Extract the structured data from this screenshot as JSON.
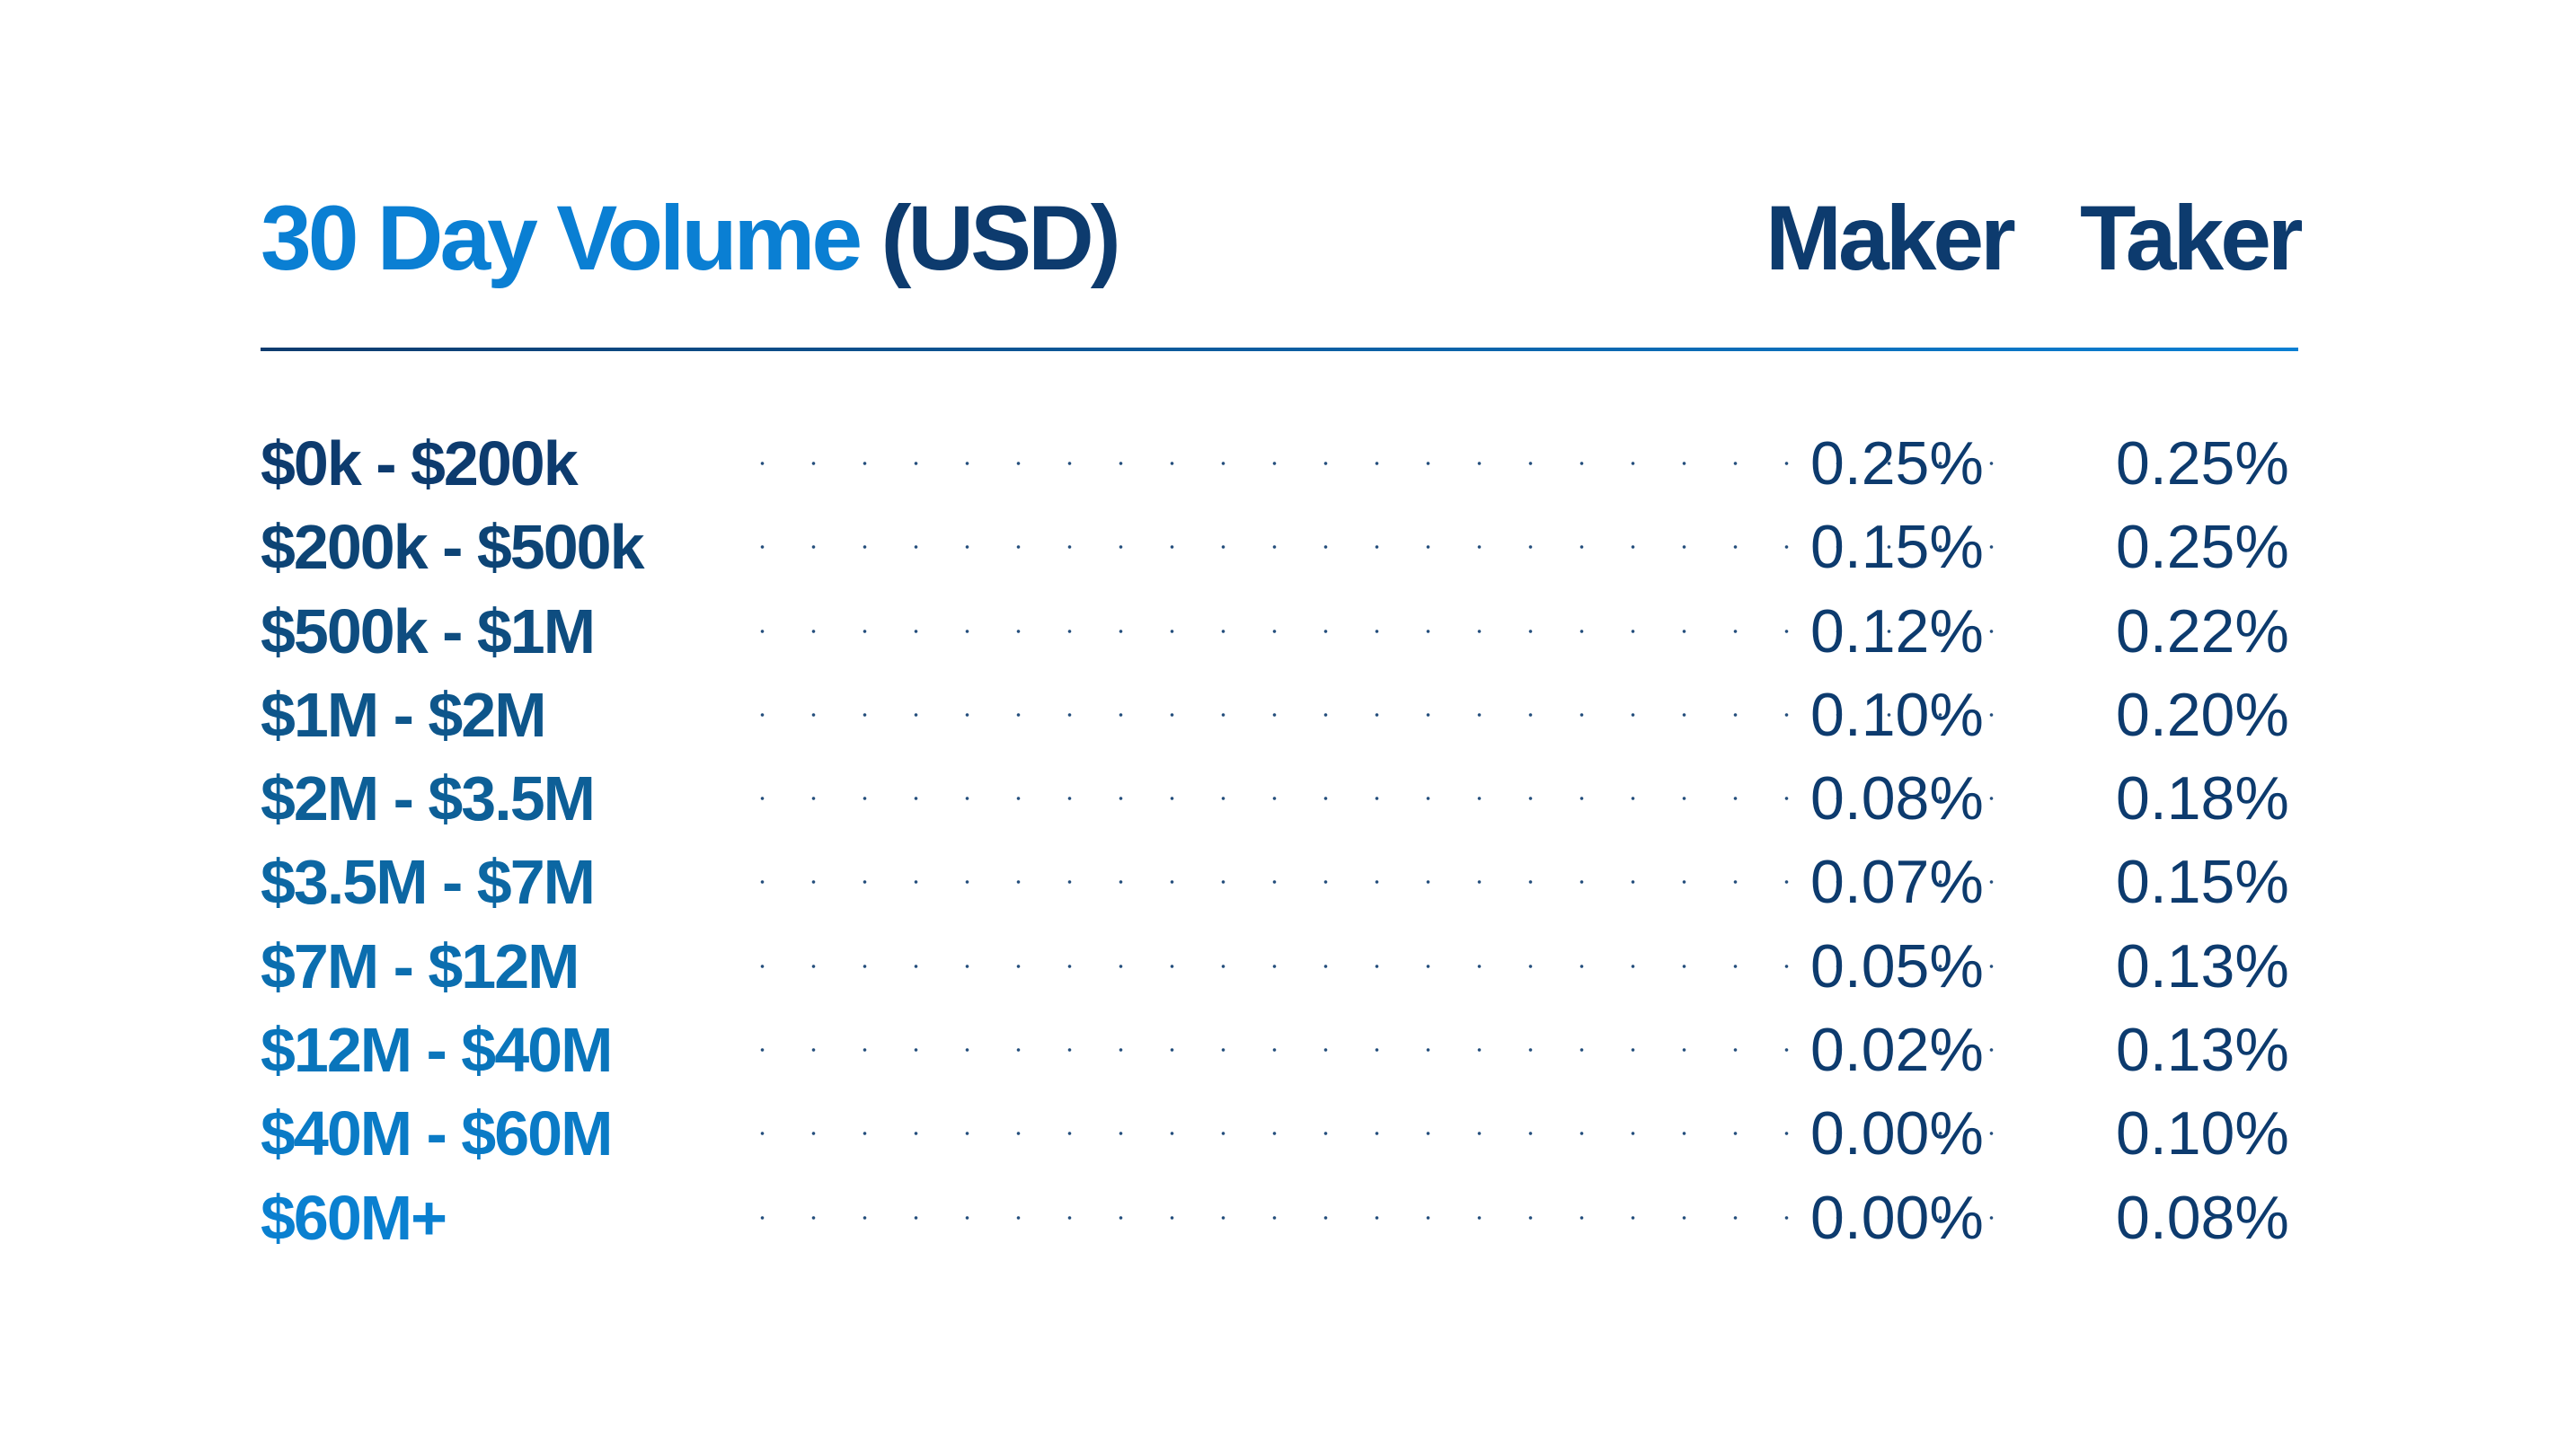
{
  "header": {
    "title_main": "30 Day Volume",
    "title_unit": "(USD)",
    "maker_label": "Maker",
    "taker_label": "Taker"
  },
  "colors": {
    "dark_blue": "#0d3b6e",
    "bright_blue": "#0a7fd3"
  },
  "rows": [
    {
      "range": "$0k - $200k",
      "maker": "0.25%",
      "taker": "0.25%",
      "color": "#0d3b6e"
    },
    {
      "range": "$200k - $500k",
      "maker": "0.15%",
      "taker": "0.25%",
      "color": "#0d4475"
    },
    {
      "range": "$500k - $1M",
      "maker": "0.12%",
      "taker": "0.22%",
      "color": "#0e4d80"
    },
    {
      "range": "$1M  - $2M",
      "maker": "0.10%",
      "taker": "0.20%",
      "color": "#0e568b"
    },
    {
      "range": "$2M - $3.5M",
      "maker": "0.08%",
      "taker": "0.18%",
      "color": "#0d5f97"
    },
    {
      "range": "$3.5M - $7M",
      "maker": "0.07%",
      "taker": "0.15%",
      "color": "#0c67a3"
    },
    {
      "range": "$7M - $12M",
      "maker": "0.05%",
      "taker": "0.13%",
      "color": "#0b6eaf"
    },
    {
      "range": "$12M  - $40M",
      "maker": "0.02%",
      "taker": "0.13%",
      "color": "#0a75bb"
    },
    {
      "range": "$40M - $60M",
      "maker": "0.00%",
      "taker": "0.10%",
      "color": "#0a7bc6"
    },
    {
      "range": "$60M+",
      "maker": "0.00%",
      "taker": "0.08%",
      "color": "#0a80d0"
    }
  ]
}
